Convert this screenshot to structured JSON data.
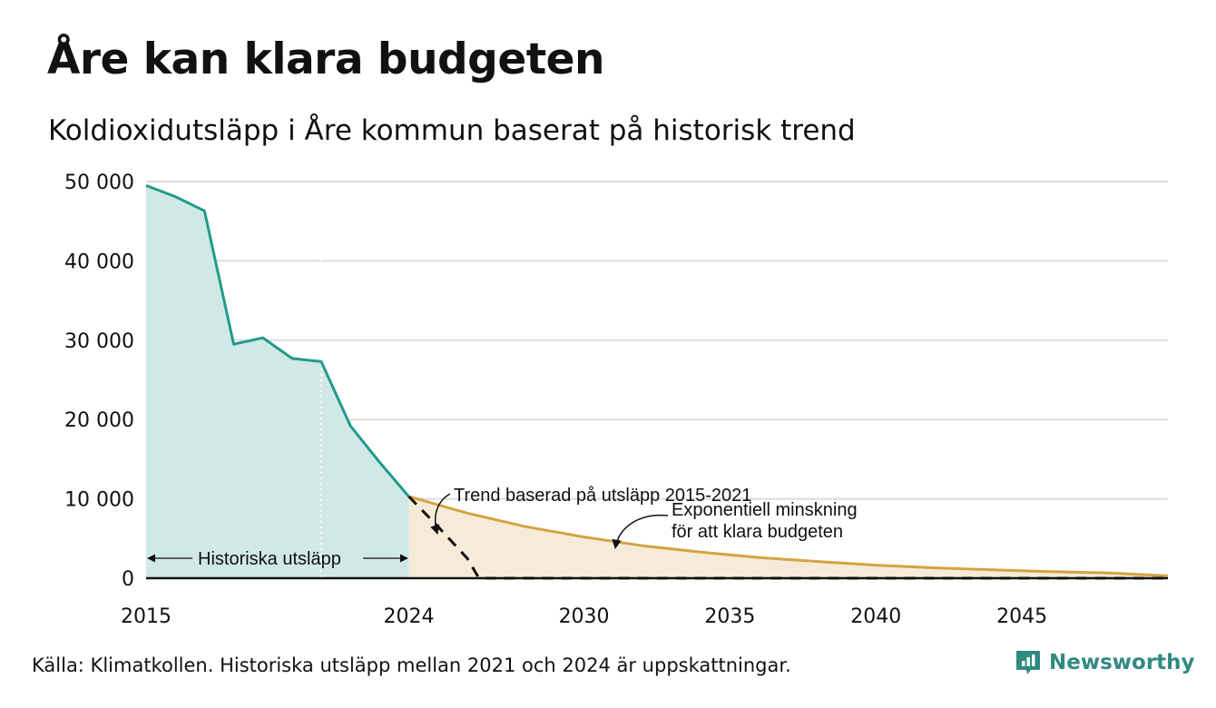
{
  "header": {
    "title": "Åre kan klara budgeten",
    "subtitle": "Koldioxidutsläpp i Åre kommun baserat på historisk trend"
  },
  "footer": {
    "source": "Källa: Klimatkollen. Historiska utsläpp mellan 2021 och 2024 är uppskattningar.",
    "brand": "Newsworthy"
  },
  "colors": {
    "historical_line": "#229a8c",
    "historical_fill": "#d1e9e6",
    "budget_line": "#d4a342",
    "budget_fill": "#f6ebd8",
    "trend_line": "#111111",
    "grid": "#dddddd",
    "brand": "#2f8a7f"
  },
  "chart_data": {
    "type": "area",
    "xlim": [
      2015,
      2050
    ],
    "ylim": [
      0,
      50000
    ],
    "yticks": [
      0,
      10000,
      20000,
      30000,
      40000,
      50000
    ],
    "ytick_labels": [
      "0",
      "10 000",
      "20 000",
      "30 000",
      "40 000",
      "50 000"
    ],
    "xticks": [
      2015,
      2024,
      2030,
      2035,
      2040,
      2045
    ],
    "xtick_labels": [
      "2015",
      "2024",
      "2030",
      "2035",
      "2040",
      "2045"
    ],
    "grid": true,
    "series": [
      {
        "name": "Historiska utsläpp",
        "style": "area-line",
        "x": [
          2015,
          2016,
          2017,
          2018,
          2019,
          2020,
          2021,
          2022,
          2023,
          2024
        ],
        "y": [
          49500,
          48100,
          46300,
          29500,
          30300,
          27700,
          27300,
          19200,
          14600,
          10300
        ]
      },
      {
        "name": "Exponentiell minskning för att klara budgeten",
        "style": "area-line",
        "x": [
          2024,
          2026,
          2028,
          2030,
          2032,
          2034,
          2036,
          2038,
          2040,
          2042,
          2044,
          2046,
          2048,
          2050
        ],
        "y": [
          10300,
          8200,
          6500,
          5200,
          4100,
          3300,
          2600,
          2100,
          1650,
          1300,
          1050,
          820,
          650,
          300
        ]
      },
      {
        "name": "Trend baserad på utsläpp 2015-2021",
        "style": "dashed",
        "x": [
          2024,
          2025,
          2026,
          2026.4,
          2030,
          2035,
          2040,
          2045,
          2050
        ],
        "y": [
          10300,
          6500,
          2500,
          0,
          0,
          0,
          0,
          0,
          0
        ]
      }
    ],
    "vertical_markers": [
      2021
    ],
    "annotations": [
      {
        "text": "Historiska utsläpp"
      },
      {
        "text": "Trend baserad på utsläpp 2015-2021"
      },
      {
        "text": "Exponentiell minskning"
      },
      {
        "text": "för att klara budgeten"
      }
    ]
  }
}
